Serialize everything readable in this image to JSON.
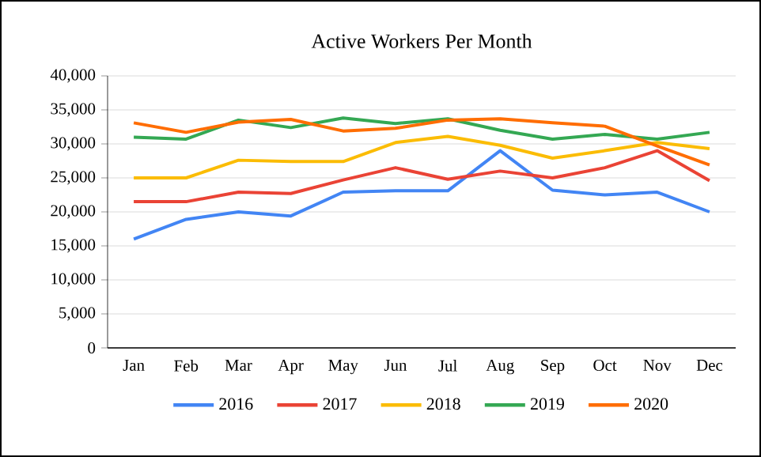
{
  "chart_data": {
    "type": "line",
    "title": "Active  Workers Per Month",
    "categories": [
      "Jan",
      "Feb",
      "Mar",
      "Apr",
      "May",
      "Jun",
      "Jul",
      "Aug",
      "Sep",
      "Oct",
      "Nov",
      "Dec"
    ],
    "series": [
      {
        "name": "2016",
        "color": "#4285f4",
        "values": [
          16000,
          18900,
          20000,
          19400,
          22900,
          23100,
          23100,
          29000,
          23200,
          22500,
          22900,
          20000
        ]
      },
      {
        "name": "2017",
        "color": "#ea4335",
        "values": [
          21500,
          21500,
          22900,
          22700,
          24700,
          26500,
          24800,
          26000,
          25000,
          26500,
          29000,
          24600
        ]
      },
      {
        "name": "2018",
        "color": "#fbbc04",
        "values": [
          25000,
          25000,
          27600,
          27400,
          27400,
          30200,
          31100,
          29800,
          27900,
          29000,
          30200,
          29300
        ]
      },
      {
        "name": "2019",
        "color": "#34a853",
        "values": [
          31000,
          30700,
          33500,
          32400,
          33800,
          33000,
          33700,
          32000,
          30700,
          31400,
          30700,
          31700
        ]
      },
      {
        "name": "2020",
        "color": "#ff6d01",
        "values": [
          33100,
          31700,
          33200,
          33600,
          31900,
          32300,
          33500,
          33700,
          33100,
          32600,
          29700,
          26900
        ]
      }
    ],
    "ylim": [
      0,
      40000
    ],
    "yticks": [
      {
        "value": 0,
        "label": "0"
      },
      {
        "value": 5000,
        "label": "5,000"
      },
      {
        "value": 10000,
        "label": "10,000"
      },
      {
        "value": 15000,
        "label": "15,000"
      },
      {
        "value": 20000,
        "label": "20,000"
      },
      {
        "value": 25000,
        "label": "25,000"
      },
      {
        "value": 30000,
        "label": "30,000"
      },
      {
        "value": 35000,
        "label": "35,000"
      },
      {
        "value": 40000,
        "label": "40,000"
      }
    ],
    "grid": "y",
    "legend": "bottom"
  }
}
